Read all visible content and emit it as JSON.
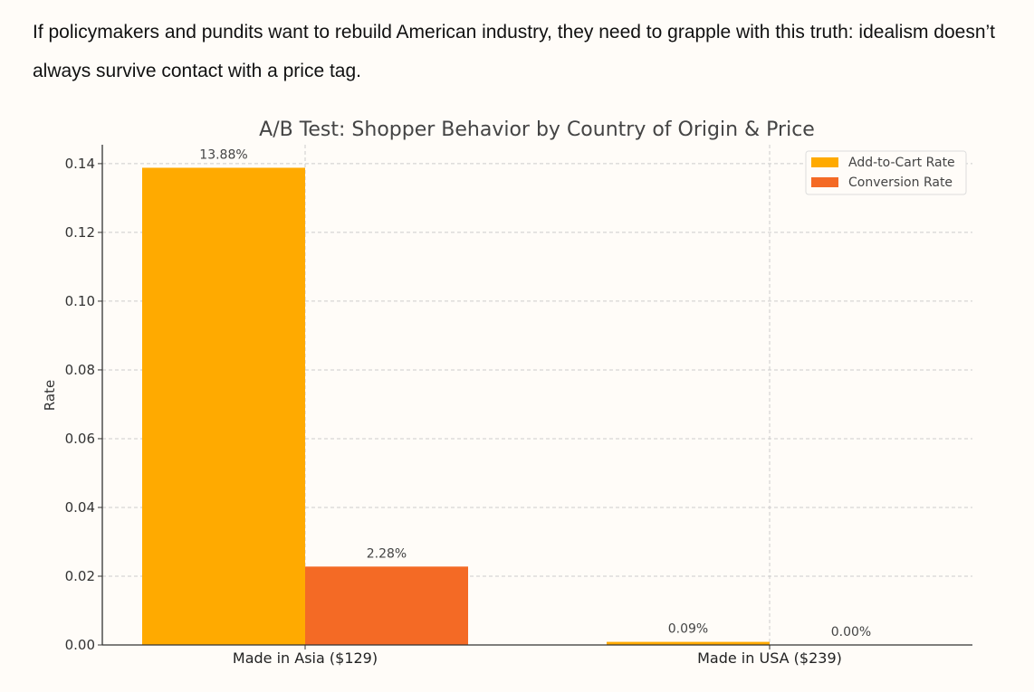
{
  "article": {
    "paragraph": "If policymakers and pundits want to rebuild American industry, they need to grapple with this truth: idealism doesn’t always survive contact with a price tag."
  },
  "chart_data": {
    "type": "bar",
    "title": "A/B Test: Shopper Behavior by Country of Origin & Price",
    "xlabel": "",
    "ylabel": "Rate",
    "categories": [
      "Made in Asia ($129)",
      "Made in USA ($239)"
    ],
    "series": [
      {
        "name": "Add-to-Cart Rate",
        "values": [
          0.1388,
          0.0009
        ],
        "labels": [
          "13.88%",
          "0.09%"
        ],
        "color": "#ffaa00"
      },
      {
        "name": "Conversion Rate",
        "values": [
          0.0228,
          0.0
        ],
        "labels": [
          "2.28%",
          "0.00%"
        ],
        "color": "#f46a25"
      }
    ],
    "ylim": [
      0,
      0.1455
    ],
    "yticks": [
      0,
      0.02,
      0.04,
      0.06,
      0.08,
      0.1,
      0.12,
      0.14
    ],
    "ytick_labels": [
      "0.00",
      "0.02",
      "0.04",
      "0.06",
      "0.08",
      "0.10",
      "0.12",
      "0.14"
    ],
    "grid": true,
    "legend_position": "top-right"
  }
}
